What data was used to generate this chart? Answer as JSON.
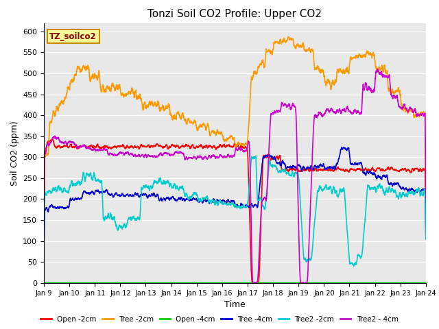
{
  "title": "Tonzi Soil CO2 Profile: Upper CO2",
  "xlabel": "Time",
  "ylabel": "Soil CO2 (ppm)",
  "ylim": [
    0,
    620
  ],
  "yticks": [
    0,
    50,
    100,
    150,
    200,
    250,
    300,
    350,
    400,
    450,
    500,
    550,
    600
  ],
  "xstart": 9,
  "xend": 24,
  "xtick_labels": [
    "Jan 9",
    "Jan 10",
    "Jan 11",
    "Jan 12",
    "Jan 13",
    "Jan 14",
    "Jan 15",
    "Jan 16",
    "Jan 17",
    "Jan 18",
    "Jan 19",
    "Jan 20",
    "Jan 21",
    "Jan 22",
    "Jan 23",
    "Jan 24"
  ],
  "plot_bg_color": "#e8e8e8",
  "legend_box_label": "TZ_soilco2",
  "legend_box_color": "#ffff99",
  "legend_box_border": "#cc8800",
  "series": [
    {
      "label": "Open -2cm",
      "color": "#ff0000",
      "lw": 1.2
    },
    {
      "label": "Tree -2cm",
      "color": "#ff9900",
      "lw": 1.2
    },
    {
      "label": "Open -4cm",
      "color": "#00cc00",
      "lw": 1.2
    },
    {
      "label": "Tree -4cm",
      "color": "#0000cc",
      "lw": 1.2
    },
    {
      "label": "Tree2 -2cm",
      "color": "#00cccc",
      "lw": 1.2
    },
    {
      "label": "Tree2 - 4cm",
      "color": "#cc00cc",
      "lw": 1.2
    }
  ]
}
